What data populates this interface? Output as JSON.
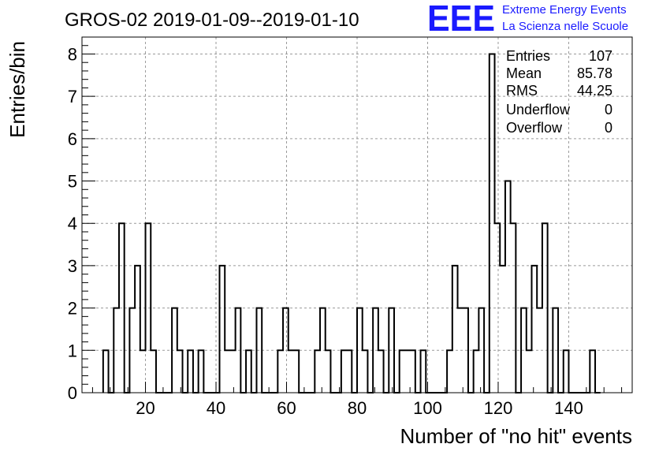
{
  "header": {
    "title": "GROS-02 2019-01-09--2019-01-10",
    "logo_text": "EEE",
    "logo_line1": "Extreme Energy Events",
    "logo_line2": "La Scienza nelle Scuole",
    "logo_color": "#1a1aff"
  },
  "stats": {
    "rows": [
      {
        "label": "Entries",
        "value": "107"
      },
      {
        "label": "Mean",
        "value": "85.78"
      },
      {
        "label": "RMS",
        "value": "44.25"
      },
      {
        "label": "Underflow",
        "value": "0"
      },
      {
        "label": "Overflow",
        "value": "0"
      }
    ]
  },
  "chart_data": {
    "type": "bar",
    "style": "step-histogram",
    "xlabel": "Number of \"no hit\" events",
    "ylabel": "Entries/bin",
    "xlim": [
      2,
      158
    ],
    "ylim": [
      0,
      8.4
    ],
    "bin_width": 1.5,
    "grid": true,
    "x_ticks": [
      20,
      40,
      60,
      80,
      100,
      120,
      140
    ],
    "y_ticks": [
      0,
      1,
      2,
      3,
      4,
      5,
      6,
      7,
      8
    ],
    "bins": [
      {
        "x": 8.0,
        "y": 1
      },
      {
        "x": 9.5,
        "y": 0
      },
      {
        "x": 11.0,
        "y": 2
      },
      {
        "x": 12.5,
        "y": 4
      },
      {
        "x": 14.0,
        "y": 0
      },
      {
        "x": 15.5,
        "y": 2
      },
      {
        "x": 17.0,
        "y": 3
      },
      {
        "x": 18.5,
        "y": 1
      },
      {
        "x": 20.0,
        "y": 4
      },
      {
        "x": 21.5,
        "y": 1
      },
      {
        "x": 23.0,
        "y": 0
      },
      {
        "x": 24.5,
        "y": 0
      },
      {
        "x": 26.0,
        "y": 0
      },
      {
        "x": 27.5,
        "y": 2
      },
      {
        "x": 29.0,
        "y": 1
      },
      {
        "x": 30.5,
        "y": 0
      },
      {
        "x": 32.0,
        "y": 1
      },
      {
        "x": 33.5,
        "y": 0
      },
      {
        "x": 35.0,
        "y": 1
      },
      {
        "x": 36.5,
        "y": 0
      },
      {
        "x": 38.0,
        "y": 0
      },
      {
        "x": 39.5,
        "y": 0
      },
      {
        "x": 41.0,
        "y": 3
      },
      {
        "x": 42.5,
        "y": 1
      },
      {
        "x": 44.0,
        "y": 1
      },
      {
        "x": 45.5,
        "y": 2
      },
      {
        "x": 47.0,
        "y": 0
      },
      {
        "x": 48.5,
        "y": 1
      },
      {
        "x": 50.0,
        "y": 0
      },
      {
        "x": 51.5,
        "y": 2
      },
      {
        "x": 53.0,
        "y": 0
      },
      {
        "x": 54.5,
        "y": 0
      },
      {
        "x": 56.0,
        "y": 0
      },
      {
        "x": 57.5,
        "y": 1
      },
      {
        "x": 59.0,
        "y": 2
      },
      {
        "x": 60.5,
        "y": 1
      },
      {
        "x": 62.0,
        "y": 1
      },
      {
        "x": 63.5,
        "y": 0
      },
      {
        "x": 65.0,
        "y": 0
      },
      {
        "x": 66.5,
        "y": 0
      },
      {
        "x": 68.0,
        "y": 1
      },
      {
        "x": 69.5,
        "y": 2
      },
      {
        "x": 71.0,
        "y": 1
      },
      {
        "x": 72.5,
        "y": 0
      },
      {
        "x": 74.0,
        "y": 0
      },
      {
        "x": 75.5,
        "y": 1
      },
      {
        "x": 77.0,
        "y": 1
      },
      {
        "x": 78.5,
        "y": 0
      },
      {
        "x": 80.0,
        "y": 2
      },
      {
        "x": 81.5,
        "y": 1
      },
      {
        "x": 83.0,
        "y": 0
      },
      {
        "x": 84.5,
        "y": 2
      },
      {
        "x": 86.0,
        "y": 1
      },
      {
        "x": 87.5,
        "y": 0
      },
      {
        "x": 89.0,
        "y": 2
      },
      {
        "x": 90.5,
        "y": 0
      },
      {
        "x": 92.0,
        "y": 1
      },
      {
        "x": 93.5,
        "y": 1
      },
      {
        "x": 95.0,
        "y": 1
      },
      {
        "x": 96.5,
        "y": 0
      },
      {
        "x": 98.0,
        "y": 1
      },
      {
        "x": 99.5,
        "y": 0
      },
      {
        "x": 101.0,
        "y": 0
      },
      {
        "x": 102.5,
        "y": 0
      },
      {
        "x": 104.0,
        "y": 0
      },
      {
        "x": 105.5,
        "y": 1
      },
      {
        "x": 107.0,
        "y": 3
      },
      {
        "x": 108.5,
        "y": 2
      },
      {
        "x": 110.0,
        "y": 2
      },
      {
        "x": 111.5,
        "y": 0
      },
      {
        "x": 113.0,
        "y": 1
      },
      {
        "x": 114.5,
        "y": 2
      },
      {
        "x": 116.0,
        "y": 0
      },
      {
        "x": 117.5,
        "y": 8
      },
      {
        "x": 119.0,
        "y": 4
      },
      {
        "x": 120.5,
        "y": 3
      },
      {
        "x": 122.0,
        "y": 5
      },
      {
        "x": 123.5,
        "y": 4
      },
      {
        "x": 125.0,
        "y": 0
      },
      {
        "x": 126.5,
        "y": 2
      },
      {
        "x": 128.0,
        "y": 1
      },
      {
        "x": 129.5,
        "y": 3
      },
      {
        "x": 131.0,
        "y": 2
      },
      {
        "x": 132.5,
        "y": 4
      },
      {
        "x": 134.0,
        "y": 0
      },
      {
        "x": 135.5,
        "y": 2
      },
      {
        "x": 137.0,
        "y": 0
      },
      {
        "x": 138.5,
        "y": 1
      },
      {
        "x": 140.0,
        "y": 0
      },
      {
        "x": 141.5,
        "y": 0
      },
      {
        "x": 143.0,
        "y": 0
      },
      {
        "x": 144.5,
        "y": 0
      },
      {
        "x": 146.0,
        "y": 1
      },
      {
        "x": 147.5,
        "y": 0
      }
    ]
  }
}
